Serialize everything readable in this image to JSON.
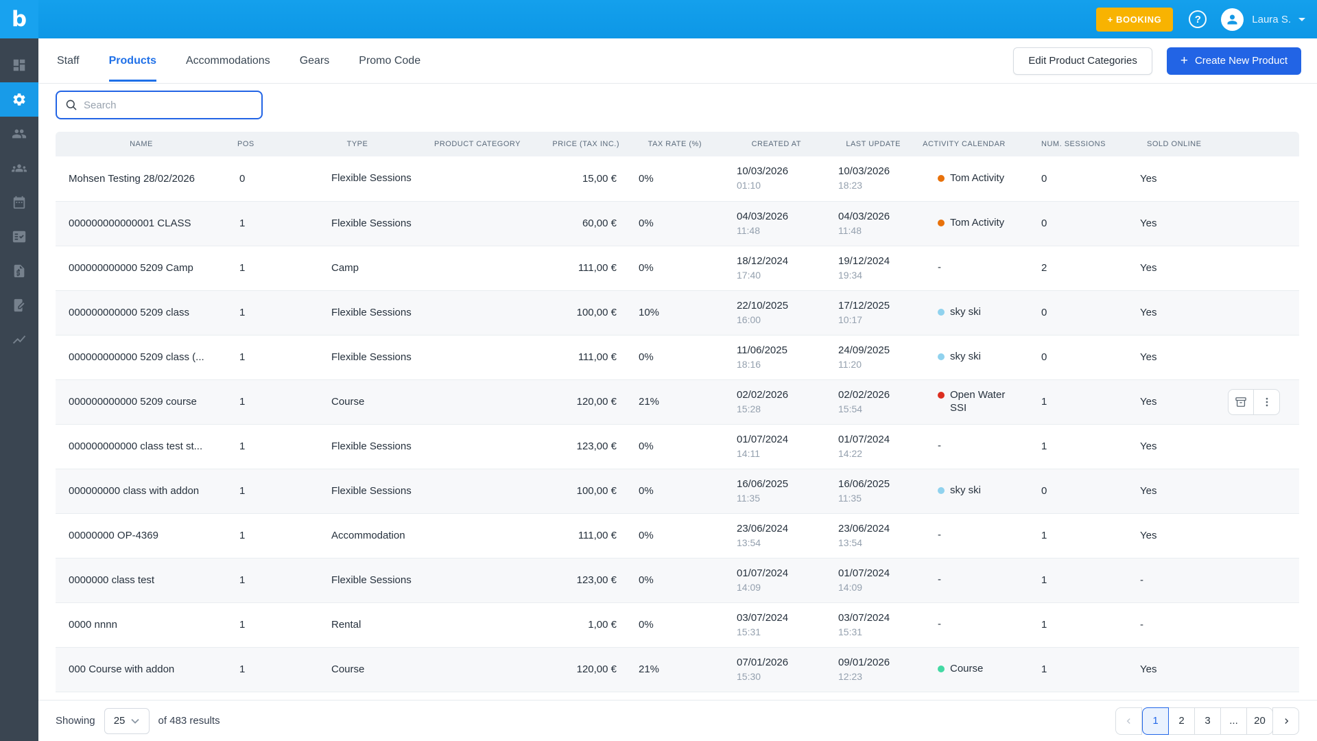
{
  "topbar": {
    "logo_letter": "b",
    "booking_button": "+ BOOKING",
    "user_name": "Laura S."
  },
  "sidebar": {
    "icons": [
      "dashboard",
      "settings",
      "customers",
      "groups",
      "calendar",
      "checklist",
      "invoices",
      "offers",
      "reports"
    ],
    "active": "settings"
  },
  "nav": {
    "tabs": [
      "Staff",
      "Products",
      "Accommodations",
      "Gears",
      "Promo Code"
    ],
    "active_tab": "Products",
    "edit_categories_button": "Edit Product Categories",
    "create_product_plus": "+",
    "create_product_button": "Create New Product"
  },
  "search": {
    "placeholder": "Search"
  },
  "table": {
    "columns": [
      "NAME",
      "POS",
      "TYPE",
      "PRODUCT CATEGORY",
      "PRICE (TAX INC.)",
      "TAX RATE (%)",
      "CREATED AT",
      "LAST UPDATE",
      "ACTIVITY CALENDAR",
      "NUM. SESSIONS",
      "SOLD ONLINE"
    ],
    "rows": [
      {
        "name": "Mohsen Testing 28/02/2026",
        "pos": "0",
        "type": "Flexible Sessions",
        "category": "",
        "price": "15,00 €",
        "tax": "0%",
        "created_date": "10/03/2026",
        "created_time": "01:10",
        "updated_date": "10/03/2026",
        "updated_time": "18:23",
        "calendar": "Tom Activity",
        "calendar_color": "#E8710A",
        "sessions": "0",
        "sold": "Yes",
        "actions": false
      },
      {
        "name": "000000000000001 CLASS",
        "pos": "1",
        "type": "Flexible Sessions",
        "category": "",
        "price": "60,00 €",
        "tax": "0%",
        "created_date": "04/03/2026",
        "created_time": "11:48",
        "updated_date": "04/03/2026",
        "updated_time": "11:48",
        "calendar": "Tom Activity",
        "calendar_color": "#E8710A",
        "sessions": "0",
        "sold": "Yes",
        "actions": false
      },
      {
        "name": "000000000000 5209 Camp",
        "pos": "1",
        "type": "Camp",
        "category": "",
        "price": "111,00 €",
        "tax": "0%",
        "created_date": "18/12/2024",
        "created_time": "17:40",
        "updated_date": "19/12/2024",
        "updated_time": "19:34",
        "calendar": "-",
        "calendar_color": null,
        "sessions": "2",
        "sold": "Yes",
        "actions": false
      },
      {
        "name": "000000000000 5209 class",
        "pos": "1",
        "type": "Flexible Sessions",
        "category": "",
        "price": "100,00 €",
        "tax": "10%",
        "created_date": "22/10/2025",
        "created_time": "16:00",
        "updated_date": "17/12/2025",
        "updated_time": "10:17",
        "calendar": "sky ski",
        "calendar_color": "#90D2EE",
        "sessions": "0",
        "sold": "Yes",
        "actions": false
      },
      {
        "name": "000000000000 5209 class (...",
        "pos": "1",
        "type": "Flexible Sessions",
        "category": "",
        "price": "111,00 €",
        "tax": "0%",
        "created_date": "11/06/2025",
        "created_time": "18:16",
        "updated_date": "24/09/2025",
        "updated_time": "11:20",
        "calendar": "sky ski",
        "calendar_color": "#90D2EE",
        "sessions": "0",
        "sold": "Yes",
        "actions": false
      },
      {
        "name": "000000000000 5209 course",
        "pos": "1",
        "type": "Course",
        "category": "",
        "price": "120,00 €",
        "tax": "21%",
        "created_date": "02/02/2026",
        "created_time": "15:28",
        "updated_date": "02/02/2026",
        "updated_time": "15:54",
        "calendar": "Open Water SSI",
        "calendar_color": "#DC2E20",
        "sessions": "1",
        "sold": "Yes",
        "actions": true
      },
      {
        "name": "000000000000 class test st...",
        "pos": "1",
        "type": "Flexible Sessions",
        "category": "",
        "price": "123,00 €",
        "tax": "0%",
        "created_date": "01/07/2024",
        "created_time": "14:11",
        "updated_date": "01/07/2024",
        "updated_time": "14:22",
        "calendar": "-",
        "calendar_color": null,
        "sessions": "1",
        "sold": "Yes",
        "actions": false
      },
      {
        "name": "000000000 class with addon",
        "pos": "1",
        "type": "Flexible Sessions",
        "category": "",
        "price": "100,00 €",
        "tax": "0%",
        "created_date": "16/06/2025",
        "created_time": "11:35",
        "updated_date": "16/06/2025",
        "updated_time": "11:35",
        "calendar": "sky ski",
        "calendar_color": "#90D2EE",
        "sessions": "0",
        "sold": "Yes",
        "actions": false
      },
      {
        "name": "00000000 OP-4369",
        "pos": "1",
        "type": "Accommodation",
        "category": "",
        "price": "111,00 €",
        "tax": "0%",
        "created_date": "23/06/2024",
        "created_time": "13:54",
        "updated_date": "23/06/2024",
        "updated_time": "13:54",
        "calendar": "-",
        "calendar_color": null,
        "sessions": "1",
        "sold": "Yes",
        "actions": false
      },
      {
        "name": "0000000 class test",
        "pos": "1",
        "type": "Flexible Sessions",
        "category": "",
        "price": "123,00 €",
        "tax": "0%",
        "created_date": "01/07/2024",
        "created_time": "14:09",
        "updated_date": "01/07/2024",
        "updated_time": "14:09",
        "calendar": "-",
        "calendar_color": null,
        "sessions": "1",
        "sold": "-",
        "actions": false
      },
      {
        "name": "0000 nnnn",
        "pos": "1",
        "type": "Rental",
        "category": "",
        "price": "1,00 €",
        "tax": "0%",
        "created_date": "03/07/2024",
        "created_time": "15:31",
        "updated_date": "03/07/2024",
        "updated_time": "15:31",
        "calendar": "-",
        "calendar_color": null,
        "sessions": "1",
        "sold": "-",
        "actions": false
      },
      {
        "name": "000 Course with addon",
        "pos": "1",
        "type": "Course",
        "category": "",
        "price": "120,00 €",
        "tax": "21%",
        "created_date": "07/01/2026",
        "created_time": "15:30",
        "updated_date": "09/01/2026",
        "updated_time": "12:23",
        "calendar": "Course",
        "calendar_color": "#43D9A3",
        "sessions": "1",
        "sold": "Yes",
        "actions": false
      }
    ]
  },
  "footer": {
    "showing": "Showing",
    "page_size": "25",
    "results": "of 483 results",
    "pages": [
      "1",
      "2",
      "3",
      "...",
      "20"
    ],
    "active_page": "1"
  },
  "colors": {
    "topbar_blue": "#0E9BE9",
    "sidebar_dark": "#3A4551",
    "accent_blue": "#2264E5",
    "active_tab_blue": "#1F70E8",
    "booking_yellow": "#F8B301"
  }
}
